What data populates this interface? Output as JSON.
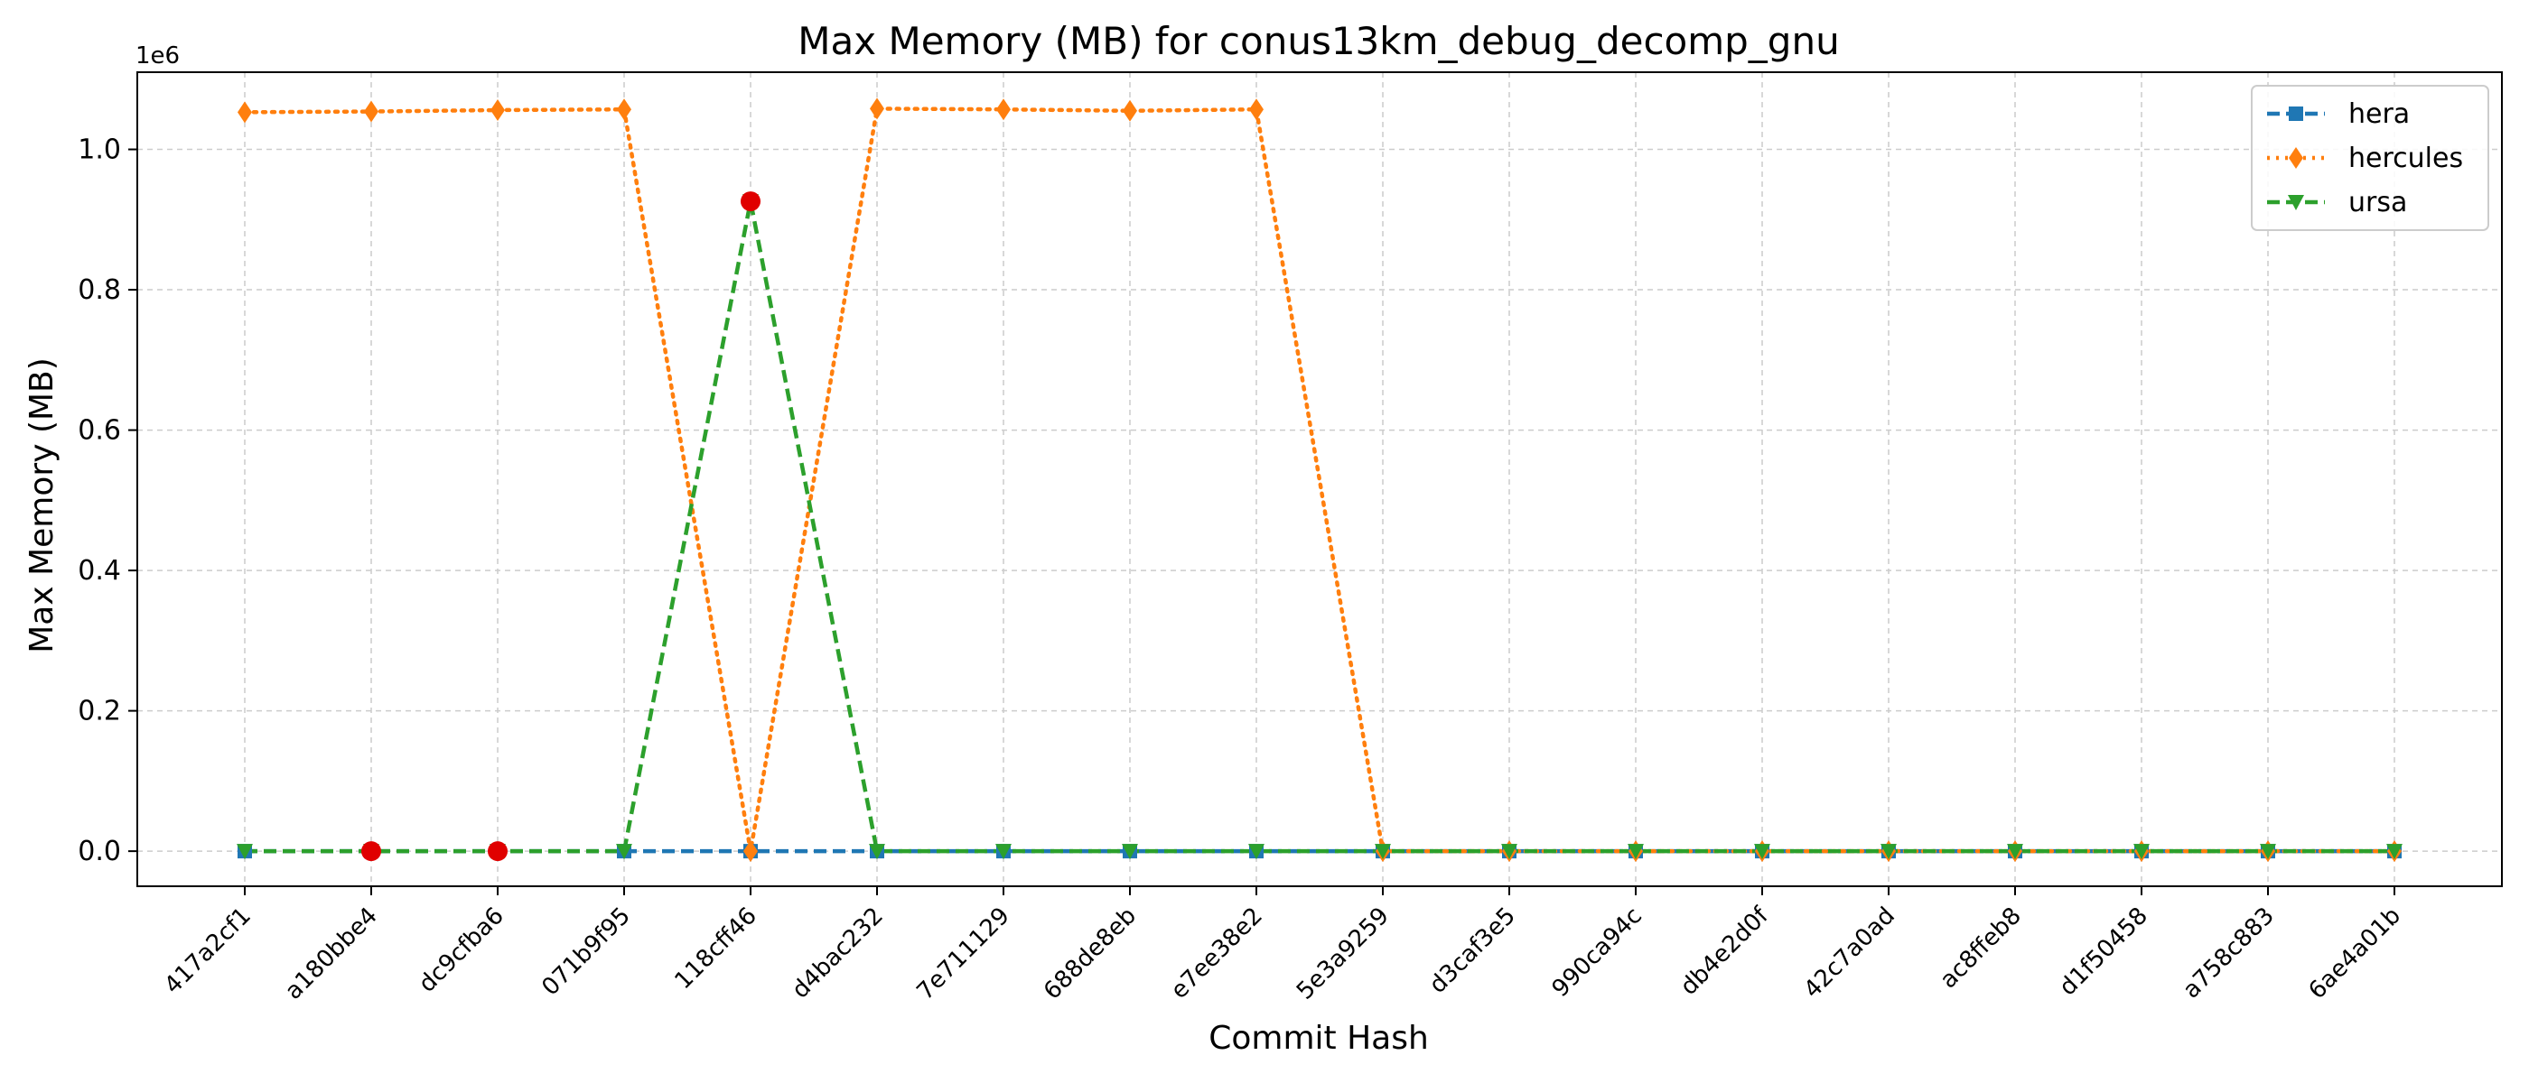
{
  "chart_data": {
    "type": "line",
    "title": "Max Memory (MB) for conus13km_debug_decomp_gnu",
    "xlabel": "Commit Hash",
    "ylabel": "Max Memory (MB)",
    "y_offset_label": "1e6",
    "y_scale": 1000000,
    "ylim": [
      -50000,
      1110000
    ],
    "yticks": [
      0.0,
      0.2,
      0.4,
      0.6,
      0.8,
      1.0
    ],
    "ytick_labels": [
      "0.0",
      "0.2",
      "0.4",
      "0.6",
      "0.8",
      "1.0"
    ],
    "grid": true,
    "legend_position": "top-right",
    "categories": [
      "417a2cf1",
      "a180bbe4",
      "dc9cfba6",
      "071b9f95",
      "118cff46",
      "d4bac232",
      "7e711129",
      "688de8eb",
      "e7ee38e2",
      "5e3a9259",
      "d3caf3e5",
      "990ca94c",
      "db4e2d0f",
      "42c7a0ad",
      "ac8ffeb8",
      "d1f50458",
      "a758c883",
      "6ae4a01b"
    ],
    "series": [
      {
        "name": "hera",
        "color": "#1f77b4",
        "marker": "square",
        "line_style": "dashed",
        "values": [
          0,
          0,
          0,
          0,
          0,
          0,
          0,
          0,
          0,
          0,
          0,
          0,
          0,
          0,
          0,
          0,
          0,
          0
        ]
      },
      {
        "name": "hercules",
        "color": "#ff7f0e",
        "marker": "diamond",
        "line_style": "dotted",
        "values": [
          1053000,
          1054000,
          1056000,
          1057000,
          0,
          1058000,
          1057000,
          1055000,
          1057000,
          0,
          0,
          0,
          0,
          0,
          0,
          0,
          0,
          0
        ]
      },
      {
        "name": "ursa",
        "color": "#2ca02c",
        "marker": "triangle-down",
        "line_style": "dashed",
        "values": [
          0,
          0,
          0,
          0,
          926000,
          0,
          0,
          0,
          0,
          0,
          0,
          0,
          0,
          0,
          0,
          0,
          0,
          0
        ]
      }
    ],
    "highlights": {
      "color": "#e00000",
      "points": [
        {
          "category": "a180bbe4",
          "value": 0
        },
        {
          "category": "dc9cfba6",
          "value": 0
        },
        {
          "category": "118cff46",
          "value": 926000
        }
      ]
    }
  }
}
